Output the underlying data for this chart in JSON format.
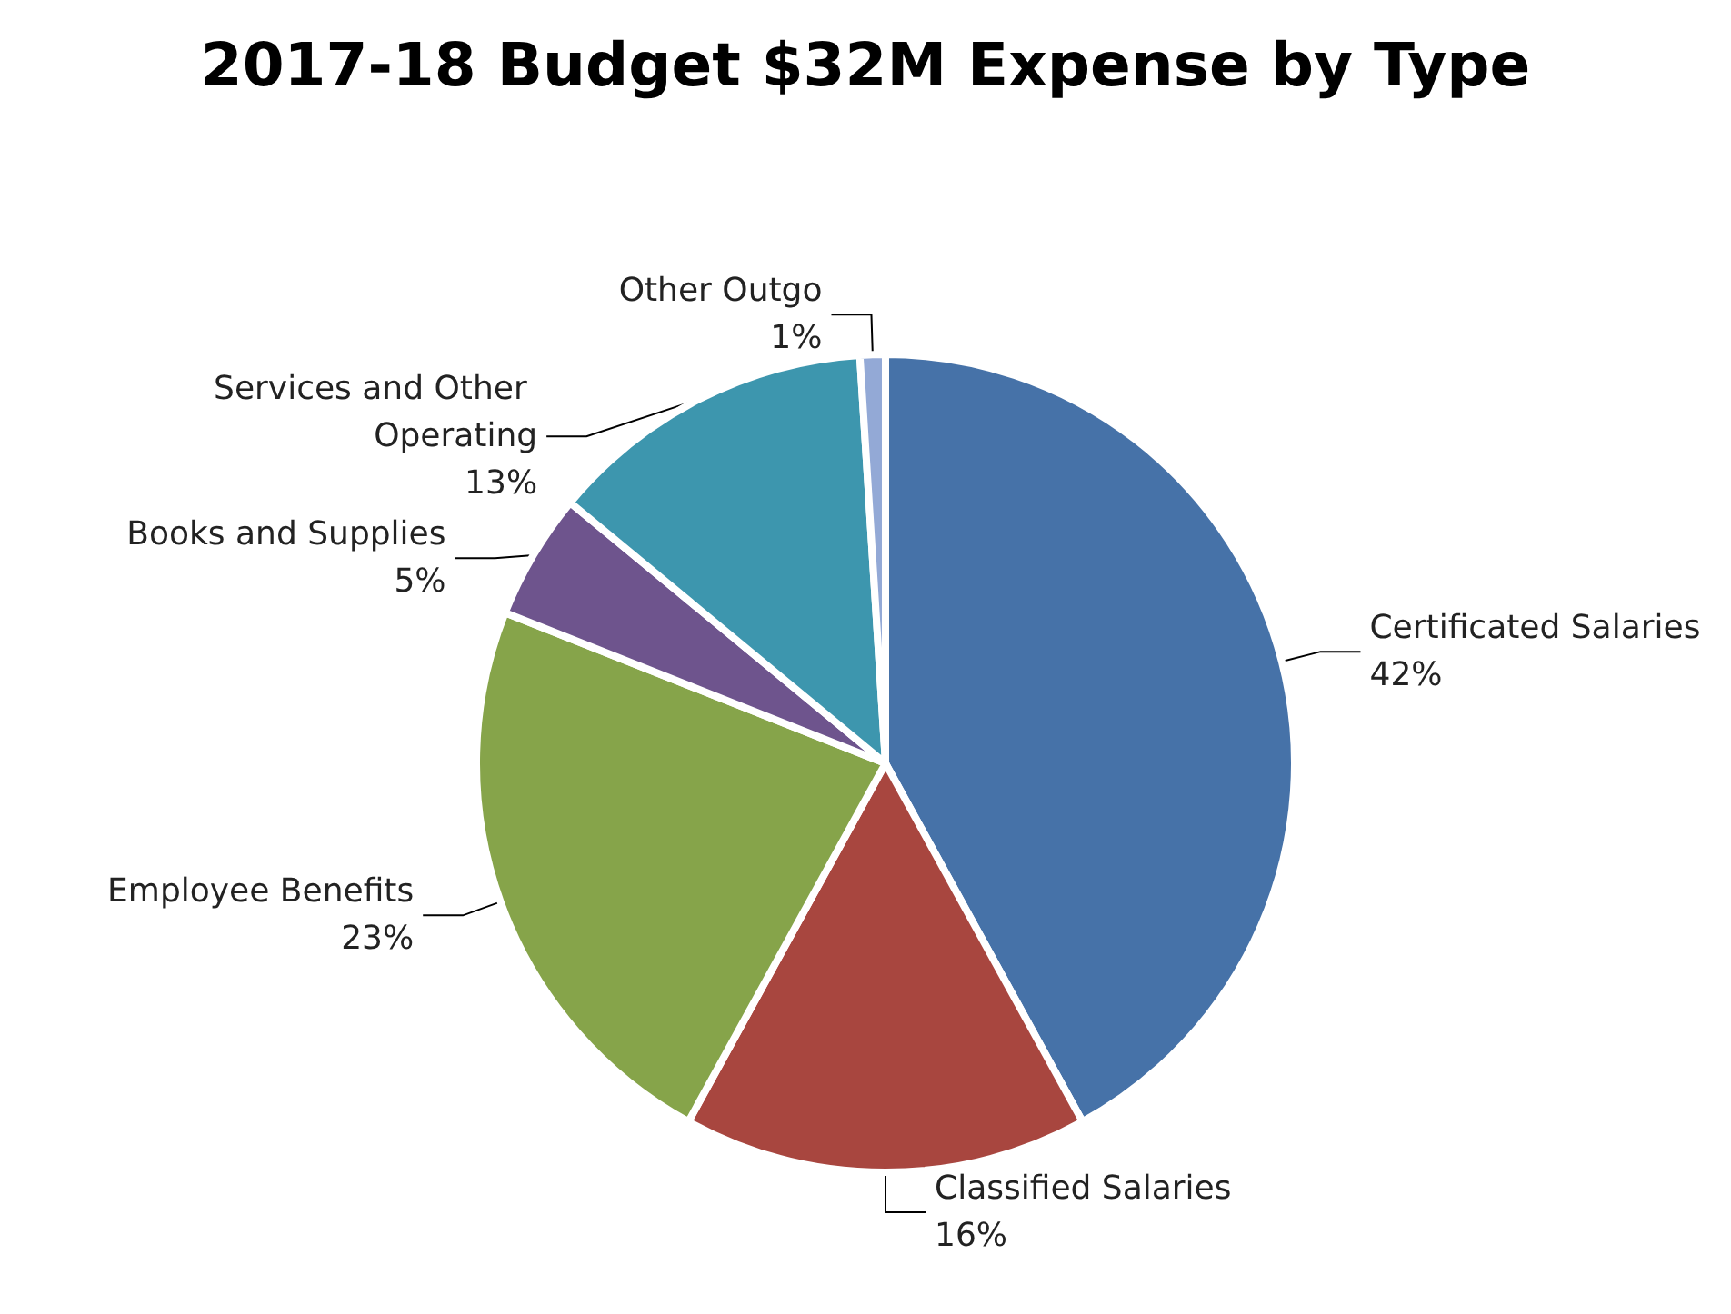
{
  "chart_data": {
    "type": "pie",
    "title": "2017-18 Budget $32M Expense by Type",
    "categories": [
      "Certificated Salaries",
      "Classified Salaries",
      "Employee Benefits",
      "Books and Supplies",
      "Services and Other Operating",
      "Other Outgo"
    ],
    "values": [
      42,
      16,
      23,
      5,
      13,
      1
    ],
    "colors": [
      "#4672a8",
      "#a8463f",
      "#86a44a",
      "#6e548d",
      "#3d96ae",
      "#93a9d6"
    ],
    "value_labels": [
      "42%",
      "16%",
      "23%",
      "5%",
      "13%",
      "1%"
    ]
  }
}
